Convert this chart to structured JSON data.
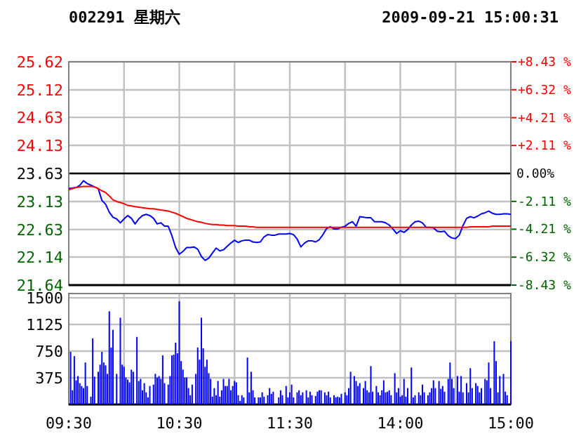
{
  "chart_data": [
    {
      "type": "line",
      "title": "002291 星期六",
      "subtitle": "2009-09-21 15:00:31",
      "categories": [
        null,
        null,
        null,
        null,
        null,
        null,
        null,
        null,
        null,
        null,
        null,
        null,
        null,
        null,
        null,
        null,
        null,
        null,
        null,
        null,
        null,
        null,
        null,
        null,
        null,
        null,
        null,
        null,
        null,
        null,
        null,
        null,
        null,
        null,
        null,
        null,
        null,
        null,
        null,
        null,
        null,
        null,
        null,
        null,
        null,
        null,
        null,
        null,
        null,
        null,
        null,
        null,
        null,
        null,
        null,
        null,
        null,
        null,
        null,
        null,
        null,
        null,
        null,
        null,
        null,
        null,
        null,
        null,
        null,
        null,
        null,
        null,
        null,
        null,
        null,
        null,
        null,
        null,
        null,
        null,
        null,
        null,
        null,
        null,
        null,
        null,
        null,
        null,
        null,
        null,
        null,
        null,
        null,
        null,
        null,
        null,
        null,
        null,
        null,
        null,
        null,
        null,
        null,
        null,
        null,
        null,
        null,
        null,
        null,
        null,
        null,
        null,
        null,
        null,
        null,
        null,
        null,
        null,
        null,
        null,
        null
      ],
      "ylim": [
        21.64,
        25.62
      ],
      "yticks": [
        21.64,
        22.14,
        22.63,
        23.13,
        23.63,
        24.13,
        24.63,
        25.12,
        25.62
      ],
      "y2lim": [
        -8.43,
        8.43
      ],
      "y2ticks": [
        {
          "value": -8.43,
          "label": "-8.43 %"
        },
        {
          "value": -6.32,
          "label": "-6.32 %"
        },
        {
          "value": -4.21,
          "label": "-4.21 %"
        },
        {
          "value": -2.11,
          "label": "-2.11 %"
        },
        {
          "value": 0,
          "label": "0.00%"
        },
        {
          "value": 2.11,
          "label": "+2.11 %"
        },
        {
          "value": 4.21,
          "label": "+4.21 %"
        },
        {
          "value": 6.32,
          "label": "+6.32 %"
        },
        {
          "value": 8.43,
          "label": "+8.43 %"
        }
      ],
      "grid": true,
      "ref_lines": [
        {
          "axis": "y",
          "value": 23.63,
          "color": "#000000"
        }
      ],
      "series": [
        {
          "color": "#0000ff",
          "values": [
            23.36,
            23.37,
            23.38,
            23.42,
            23.5,
            23.45,
            23.42,
            23.39,
            23.36,
            23.15,
            23.08,
            22.94,
            22.85,
            22.82,
            22.75,
            22.82,
            22.88,
            22.83,
            22.73,
            22.82,
            22.88,
            22.9,
            22.88,
            22.83,
            22.73,
            22.75,
            22.69,
            22.69,
            22.52,
            22.31,
            22.19,
            22.24,
            22.31,
            22.31,
            22.32,
            22.28,
            22.15,
            22.08,
            22.12,
            22.21,
            22.3,
            22.25,
            22.27,
            22.33,
            22.39,
            22.44,
            22.4,
            22.43,
            22.44,
            22.44,
            22.41,
            22.4,
            22.41,
            22.5,
            22.54,
            22.53,
            22.53,
            22.55,
            22.55,
            22.55,
            22.56,
            22.54,
            22.46,
            22.32,
            22.39,
            22.43,
            22.43,
            22.41,
            22.45,
            22.54,
            22.65,
            22.68,
            22.64,
            22.64,
            22.67,
            22.69,
            22.74,
            22.77,
            22.69,
            22.86,
            22.85,
            22.84,
            22.84,
            22.77,
            22.77,
            22.77,
            22.75,
            22.71,
            22.64,
            22.56,
            22.61,
            22.58,
            22.63,
            22.71,
            22.77,
            22.78,
            22.75,
            22.67,
            22.67,
            22.66,
            22.6,
            22.59,
            22.6,
            22.52,
            22.48,
            22.47,
            22.53,
            22.7,
            22.83,
            22.86,
            22.84,
            22.87,
            22.91,
            22.93,
            22.96,
            22.92,
            22.9,
            22.9,
            22.91,
            22.91,
            22.9
          ]
        },
        {
          "color": "#ff0000",
          "values": [
            23.34,
            23.36,
            23.38,
            23.39,
            23.4,
            23.4,
            23.4,
            23.39,
            23.36,
            23.32,
            23.29,
            23.23,
            23.16,
            23.13,
            23.11,
            23.09,
            23.06,
            23.05,
            23.04,
            23.03,
            23.02,
            23.01,
            23.0,
            23.0,
            22.99,
            22.98,
            22.97,
            22.96,
            22.94,
            22.92,
            22.89,
            22.86,
            22.83,
            22.81,
            22.79,
            22.77,
            22.76,
            22.74,
            22.73,
            22.72,
            22.72,
            22.71,
            22.71,
            22.7,
            22.7,
            22.7,
            22.69,
            22.69,
            22.69,
            22.68,
            22.68,
            22.67,
            22.67,
            22.67,
            22.67,
            22.67,
            22.67,
            22.67,
            22.67,
            22.67,
            22.67,
            22.67,
            22.67,
            22.67,
            22.67,
            22.67,
            22.67,
            22.67,
            22.67,
            22.67,
            22.67,
            22.67,
            22.67,
            22.67,
            22.67,
            22.67,
            22.67,
            22.67,
            22.67,
            22.67,
            22.67,
            22.67,
            22.67,
            22.67,
            22.67,
            22.67,
            22.67,
            22.67,
            22.67,
            22.67,
            22.67,
            22.67,
            22.67,
            22.67,
            22.67,
            22.67,
            22.67,
            22.67,
            22.67,
            22.67,
            22.67,
            22.67,
            22.67,
            22.67,
            22.67,
            22.67,
            22.67,
            22.67,
            22.67,
            22.68,
            22.68,
            22.68,
            22.68,
            22.68,
            22.68,
            22.69,
            22.69,
            22.69,
            22.69,
            22.69,
            22.69
          ]
        }
      ]
    },
    {
      "type": "bar",
      "categories": [
        "09:30",
        null,
        null,
        null,
        null,
        null,
        null,
        null,
        null,
        null,
        null,
        null,
        null,
        null,
        null,
        null,
        null,
        null,
        null,
        null,
        null,
        null,
        null,
        null,
        null,
        null,
        null,
        null,
        null,
        null,
        null,
        null,
        null,
        null,
        null,
        null,
        null,
        null,
        null,
        null,
        null,
        null,
        null,
        null,
        null,
        null,
        null,
        null,
        null,
        null,
        null,
        null,
        null,
        null,
        null,
        null,
        null,
        null,
        null,
        null,
        "10:30",
        null,
        null,
        null,
        null,
        null,
        null,
        null,
        null,
        null,
        null,
        null,
        null,
        null,
        null,
        null,
        null,
        null,
        null,
        null,
        null,
        null,
        null,
        null,
        null,
        null,
        null,
        null,
        null,
        null,
        null,
        null,
        null,
        null,
        null,
        null,
        null,
        null,
        null,
        null,
        null,
        null,
        null,
        null,
        null,
        null,
        null,
        null,
        null,
        null,
        null,
        null,
        null,
        null,
        null,
        null,
        null,
        null,
        null,
        null,
        "11:30",
        null,
        null,
        null,
        null,
        null,
        null,
        null,
        null,
        null,
        null,
        null,
        null,
        null,
        null,
        null,
        null,
        null,
        null,
        null,
        null,
        null,
        null,
        null,
        null,
        null,
        null,
        null,
        null,
        null,
        null,
        null,
        null,
        null,
        null,
        null,
        null,
        null,
        null,
        null,
        null,
        null,
        null,
        null,
        null,
        null,
        null,
        null,
        null,
        null,
        null,
        null,
        null,
        null,
        null,
        null,
        null,
        null,
        null,
        null,
        "14:00",
        null,
        null,
        null,
        null,
        null,
        null,
        null,
        null,
        null,
        null,
        null,
        null,
        null,
        null,
        null,
        null,
        null,
        null,
        null,
        null,
        null,
        null,
        null,
        null,
        null,
        null,
        null,
        null,
        null,
        null,
        null,
        null,
        null,
        null,
        null,
        null,
        null,
        null,
        null,
        null,
        null,
        null,
        null,
        null,
        null,
        null,
        null,
        null,
        null,
        null,
        null,
        null,
        null,
        null,
        null,
        null,
        null,
        null,
        null,
        "15:00"
      ],
      "ylim": [
        0,
        1560
      ],
      "yticks": [
        375,
        750,
        1125,
        1500
      ],
      "grid": true,
      "series": [
        {
          "color": "#0000ff",
          "values": [
            null,
            740,
            200,
            680,
            340,
            400,
            300,
            260,
            230,
            590,
            260,
            null,
            110,
            930,
            390,
            null,
            460,
            560,
            740,
            590,
            550,
            430,
            1310,
            800,
            1050,
            null,
            430,
            null,
            1220,
            560,
            530,
            380,
            350,
            310,
            490,
            460,
            null,
            950,
            330,
            360,
            200,
            300,
            170,
            100,
            260,
            null,
            280,
            430,
            380,
            400,
            360,
            690,
            300,
            null,
            280,
            400,
            690,
            700,
            870,
            720,
            1450,
            610,
            490,
            380,
            380,
            230,
            130,
            280,
            null,
            430,
            800,
            630,
            1220,
            790,
            530,
            630,
            440,
            360,
            110,
            230,
            130,
            330,
            110,
            200,
            360,
            260,
            260,
            360,
            200,
            260,
            330,
            310,
            130,
            50,
            130,
            100,
            null,
            660,
            170,
            460,
            200,
            100,
            null,
            100,
            100,
            170,
            110,
            null,
            130,
            230,
            150,
            180,
            null,
            null,
            100,
            200,
            130,
            null,
            260,
            100,
            170,
            280,
            100,
            null,
            170,
            200,
            130,
            170,
            null,
            200,
            100,
            180,
            130,
            null,
            120,
            180,
            200,
            200,
            null,
            170,
            130,
            180,
            100,
            null,
            130,
            100,
            110,
            100,
            150,
            null,
            170,
            130,
            230,
            460,
            null,
            400,
            330,
            260,
            300,
            null,
            230,
            330,
            200,
            170,
            540,
            180,
            null,
            260,
            170,
            130,
            200,
            340,
            170,
            180,
            200,
            130,
            null,
            440,
            170,
            230,
            110,
            130,
            360,
            110,
            230,
            null,
            520,
            100,
            130,
            null,
            170,
            130,
            280,
            170,
            null,
            130,
            170,
            230,
            340,
            230,
            null,
            330,
            220,
            260,
            180,
            null,
            360,
            590,
            360,
            230,
            null,
            400,
            180,
            400,
            170,
            null,
            300,
            170,
            510,
            230,
            null,
            300,
            260,
            170,
            230,
            null,
            360,
            340,
            590,
            230,
            null,
            890,
            610,
            170,
            400,
            null,
            430,
            180,
            130,
            null,
            890
          ]
        }
      ]
    }
  ]
}
